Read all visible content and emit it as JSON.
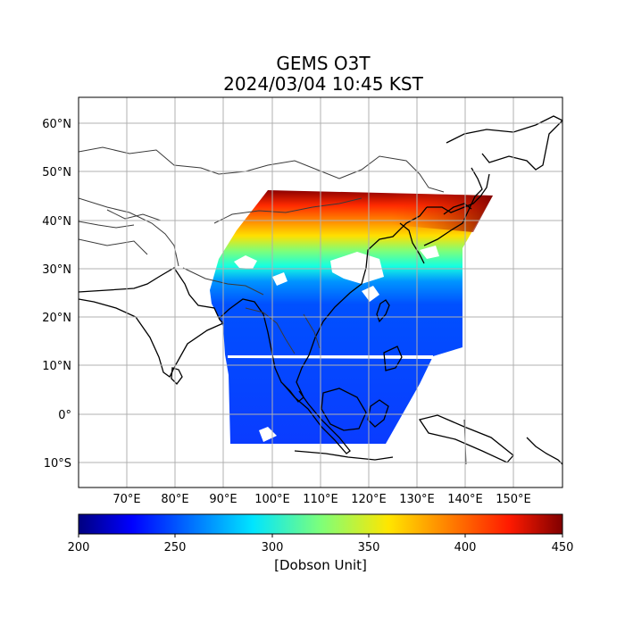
{
  "title": "GEMS O3T",
  "subtitle": "2024/03/04 10:45 KST",
  "map": {
    "lon_ticks": [
      "70°E",
      "80°E",
      "90°E",
      "100°E",
      "110°E",
      "120°E",
      "130°E",
      "140°E",
      "150°E"
    ],
    "lat_ticks": [
      "60°N",
      "50°N",
      "40°N",
      "30°N",
      "20°N",
      "10°N",
      "0°",
      "10°S"
    ],
    "lon_range": [
      60,
      160
    ],
    "lat_range": [
      -15,
      65
    ],
    "grid": true
  },
  "colorbar": {
    "ticks": [
      "200",
      "250",
      "300",
      "350",
      "400",
      "450"
    ],
    "range": [
      200,
      450
    ],
    "label": "[Dobson Unit]",
    "colormap": "jet"
  }
}
